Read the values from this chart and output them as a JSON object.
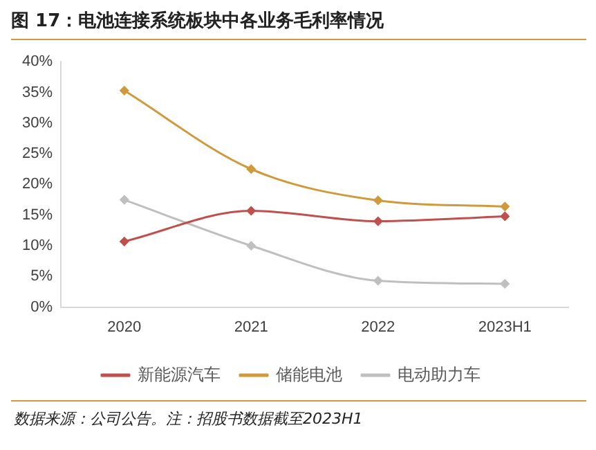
{
  "chart_data": {
    "type": "line",
    "title": "图 17：电池连接系统板块中各业务毛利率情况",
    "categories": [
      "2020",
      "2021",
      "2022",
      "2023H1"
    ],
    "series": [
      {
        "name": "新能源汽车",
        "color": "#c0504d",
        "values": [
          10.7,
          15.7,
          14.0,
          14.8
        ]
      },
      {
        "name": "储能电池",
        "color": "#d09a3c",
        "values": [
          35.3,
          22.5,
          17.4,
          16.4
        ]
      },
      {
        "name": "电动助力车",
        "color": "#bfbfbf",
        "values": [
          17.5,
          10.0,
          4.3,
          3.8
        ]
      }
    ],
    "ylim": [
      0,
      40
    ],
    "yticks": [
      {
        "value": 0,
        "label": "0%"
      },
      {
        "value": 5,
        "label": "5%"
      },
      {
        "value": 10,
        "label": "10%"
      },
      {
        "value": 15,
        "label": "15%"
      },
      {
        "value": 20,
        "label": "20%"
      },
      {
        "value": 25,
        "label": "25%"
      },
      {
        "value": 30,
        "label": "30%"
      },
      {
        "value": 35,
        "label": "35%"
      },
      {
        "value": 40,
        "label": "40%"
      }
    ],
    "grid": false,
    "legend": "bottom",
    "marker": "diamond",
    "line_style": "solid",
    "annotations": [
      "数据来源：公司公告。注：招股书数据截至2023H1"
    ]
  }
}
